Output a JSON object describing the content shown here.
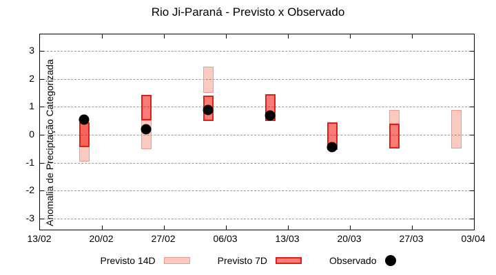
{
  "title": "Rio Ji-Paraná - Previsto x Observado",
  "legend": {
    "forecast14_label": "Previsto 14D",
    "forecast7_label": "Previsto 7D",
    "observed_label": "Observado"
  },
  "colors": {
    "forecast14_fill": "rgba(240,75,45,0.29)",
    "forecast14_border": "#f2998c",
    "forecast7_fill": "rgba(244,16,8,0.55)",
    "forecast7_border": "#e01f16",
    "observed": "#000000",
    "grid": "#999999",
    "axis": "#000000"
  },
  "chart_data": {
    "type": "bar",
    "title": "Rio Ji-Paraná - Previsto x Observado",
    "xlabel": "",
    "ylabel": "Anomalia de Preciptação Categorizada",
    "x_tick_labels": [
      "13/02",
      "20/02",
      "27/02",
      "06/03",
      "13/03",
      "20/03",
      "27/03",
      "03/04"
    ],
    "x_tick_days": [
      0,
      7,
      14,
      21,
      28,
      35,
      42,
      49
    ],
    "xlim_days": [
      0,
      49
    ],
    "y_ticks": [
      -3,
      -2,
      -1,
      0,
      1,
      2,
      3
    ],
    "ylim": [
      -3.4,
      3.6
    ],
    "grid": "horizontal-dashed",
    "legend_position": "bottom-center",
    "x_days": [
      5,
      12,
      19,
      26,
      33,
      40,
      47
    ],
    "series": [
      {
        "name": "Previsto 14D",
        "type": "interval-bar",
        "ranges": [
          [
            -0.96,
            0.45
          ],
          [
            -0.52,
            0.52
          ],
          [
            1.5,
            2.43
          ],
          null,
          null,
          [
            0.39,
            0.9
          ],
          [
            -0.5,
            0.9
          ]
        ]
      },
      {
        "name": "Previsto 7D",
        "type": "interval-bar",
        "ranges": [
          [
            -0.45,
            0.45
          ],
          [
            0.52,
            1.43
          ],
          [
            0.5,
            1.4
          ],
          [
            0.5,
            1.45
          ],
          [
            -0.55,
            0.45
          ],
          [
            -0.5,
            0.39
          ],
          null
        ]
      },
      {
        "name": "Observado",
        "type": "scatter",
        "values": [
          0.55,
          0.2,
          0.9,
          0.7,
          -0.45,
          null,
          null
        ]
      }
    ]
  }
}
